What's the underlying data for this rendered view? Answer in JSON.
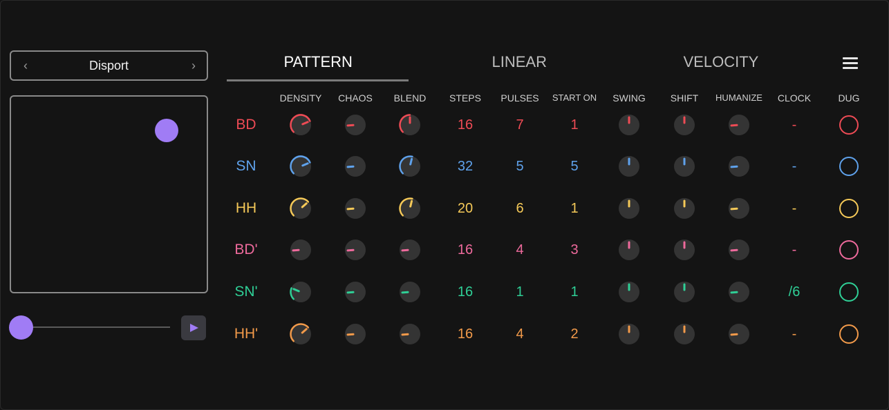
{
  "preset": {
    "name": "Disport",
    "prev_icon": "chevron-left-icon",
    "next_icon": "chevron-right-icon"
  },
  "xy_pad": {
    "puck_color": "#a07cf5"
  },
  "transport": {
    "slider_color": "#a07cf5",
    "play_icon": "play-icon"
  },
  "tabs": [
    {
      "label": "PATTERN",
      "active": true
    },
    {
      "label": "LINEAR",
      "active": false
    },
    {
      "label": "VELOCITY",
      "active": false
    }
  ],
  "menu_icon": "hamburger-menu-icon",
  "columns": [
    "DENSITY",
    "CHAOS",
    "BLEND",
    "STEPS",
    "PULSES",
    "START ON",
    "SWING",
    "SHIFT",
    "HUMANIZE",
    "CLOCK",
    "DUG"
  ],
  "rows": [
    {
      "label": "BD",
      "color": "#ee4b55",
      "density": 0.75,
      "chaos": 0.15,
      "blend": 0.5,
      "steps": "16",
      "pulses": "7",
      "start_on": "1",
      "swing": 0.5,
      "shift": 0.5,
      "humanize": 0.15,
      "clock": "-"
    },
    {
      "label": "SN",
      "color": "#5fa2ec",
      "density": 0.75,
      "chaos": 0.15,
      "blend": 0.55,
      "steps": "32",
      "pulses": "5",
      "start_on": "5",
      "swing": 0.5,
      "shift": 0.5,
      "humanize": 0.15,
      "clock": "-"
    },
    {
      "label": "HH",
      "color": "#f5c958",
      "density": 0.68,
      "chaos": 0.15,
      "blend": 0.55,
      "steps": "20",
      "pulses": "6",
      "start_on": "1",
      "swing": 0.5,
      "shift": 0.5,
      "humanize": 0.15,
      "clock": "-"
    },
    {
      "label": "BD'",
      "color": "#ee6a9c",
      "density": 0.15,
      "chaos": 0.15,
      "blend": 0.15,
      "steps": "16",
      "pulses": "4",
      "start_on": "3",
      "swing": 0.5,
      "shift": 0.5,
      "humanize": 0.15,
      "clock": "-"
    },
    {
      "label": "SN'",
      "color": "#2fcf96",
      "density": 0.25,
      "chaos": 0.15,
      "blend": 0.15,
      "steps": "16",
      "pulses": "1",
      "start_on": "1",
      "swing": 0.5,
      "shift": 0.5,
      "humanize": 0.15,
      "clock": "/6"
    },
    {
      "label": "HH'",
      "color": "#f29a4a",
      "density": 0.68,
      "chaos": 0.15,
      "blend": 0.15,
      "steps": "16",
      "pulses": "4",
      "start_on": "2",
      "swing": 0.5,
      "shift": 0.5,
      "humanize": 0.15,
      "clock": "-"
    }
  ]
}
